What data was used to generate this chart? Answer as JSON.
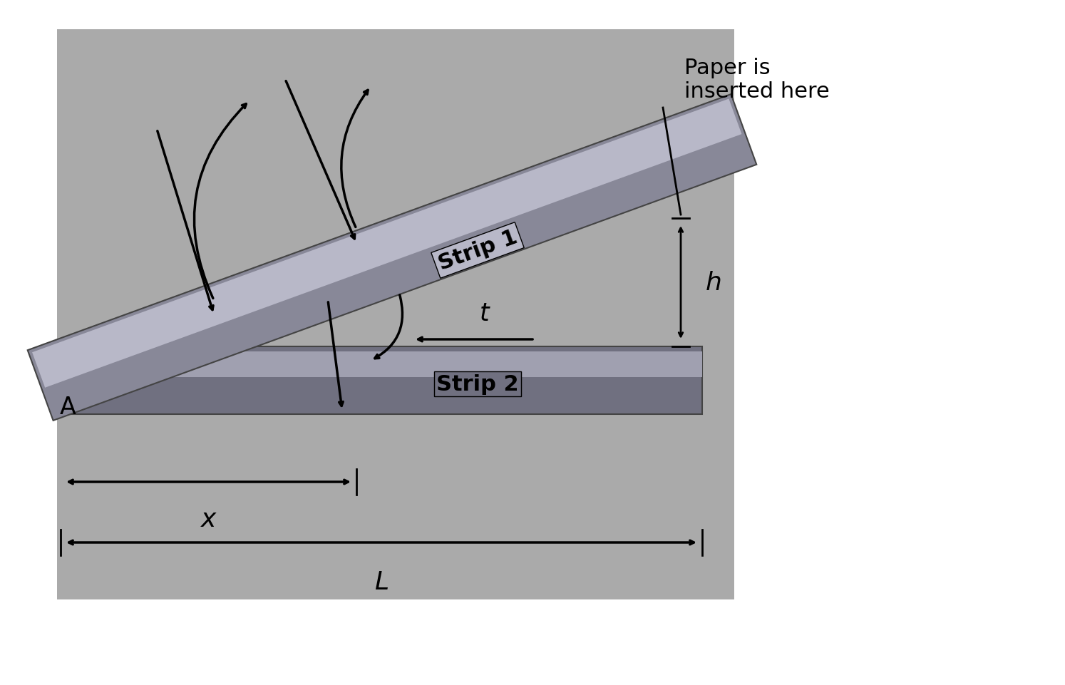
{
  "background_color": "#ffffff",
  "scene_bg_color": "#aaaaaa",
  "strip1_color_dark": "#888898",
  "strip1_color_light": "#b8b8c8",
  "strip2_color_dark": "#707080",
  "strip2_color_light": "#a0a0b0",
  "strip_edge_color": "#444444",
  "text_color": "#111111",
  "strip1_label": "Strip 1",
  "strip2_label": "Strip 2",
  "label_A": "A",
  "label_t": "t",
  "label_h": "h",
  "label_x": "x",
  "label_L": "L",
  "annotation_text": "Paper is\ninserted here",
  "font_size_labels": 22,
  "font_size_strip": 22,
  "font_size_annotation": 22
}
